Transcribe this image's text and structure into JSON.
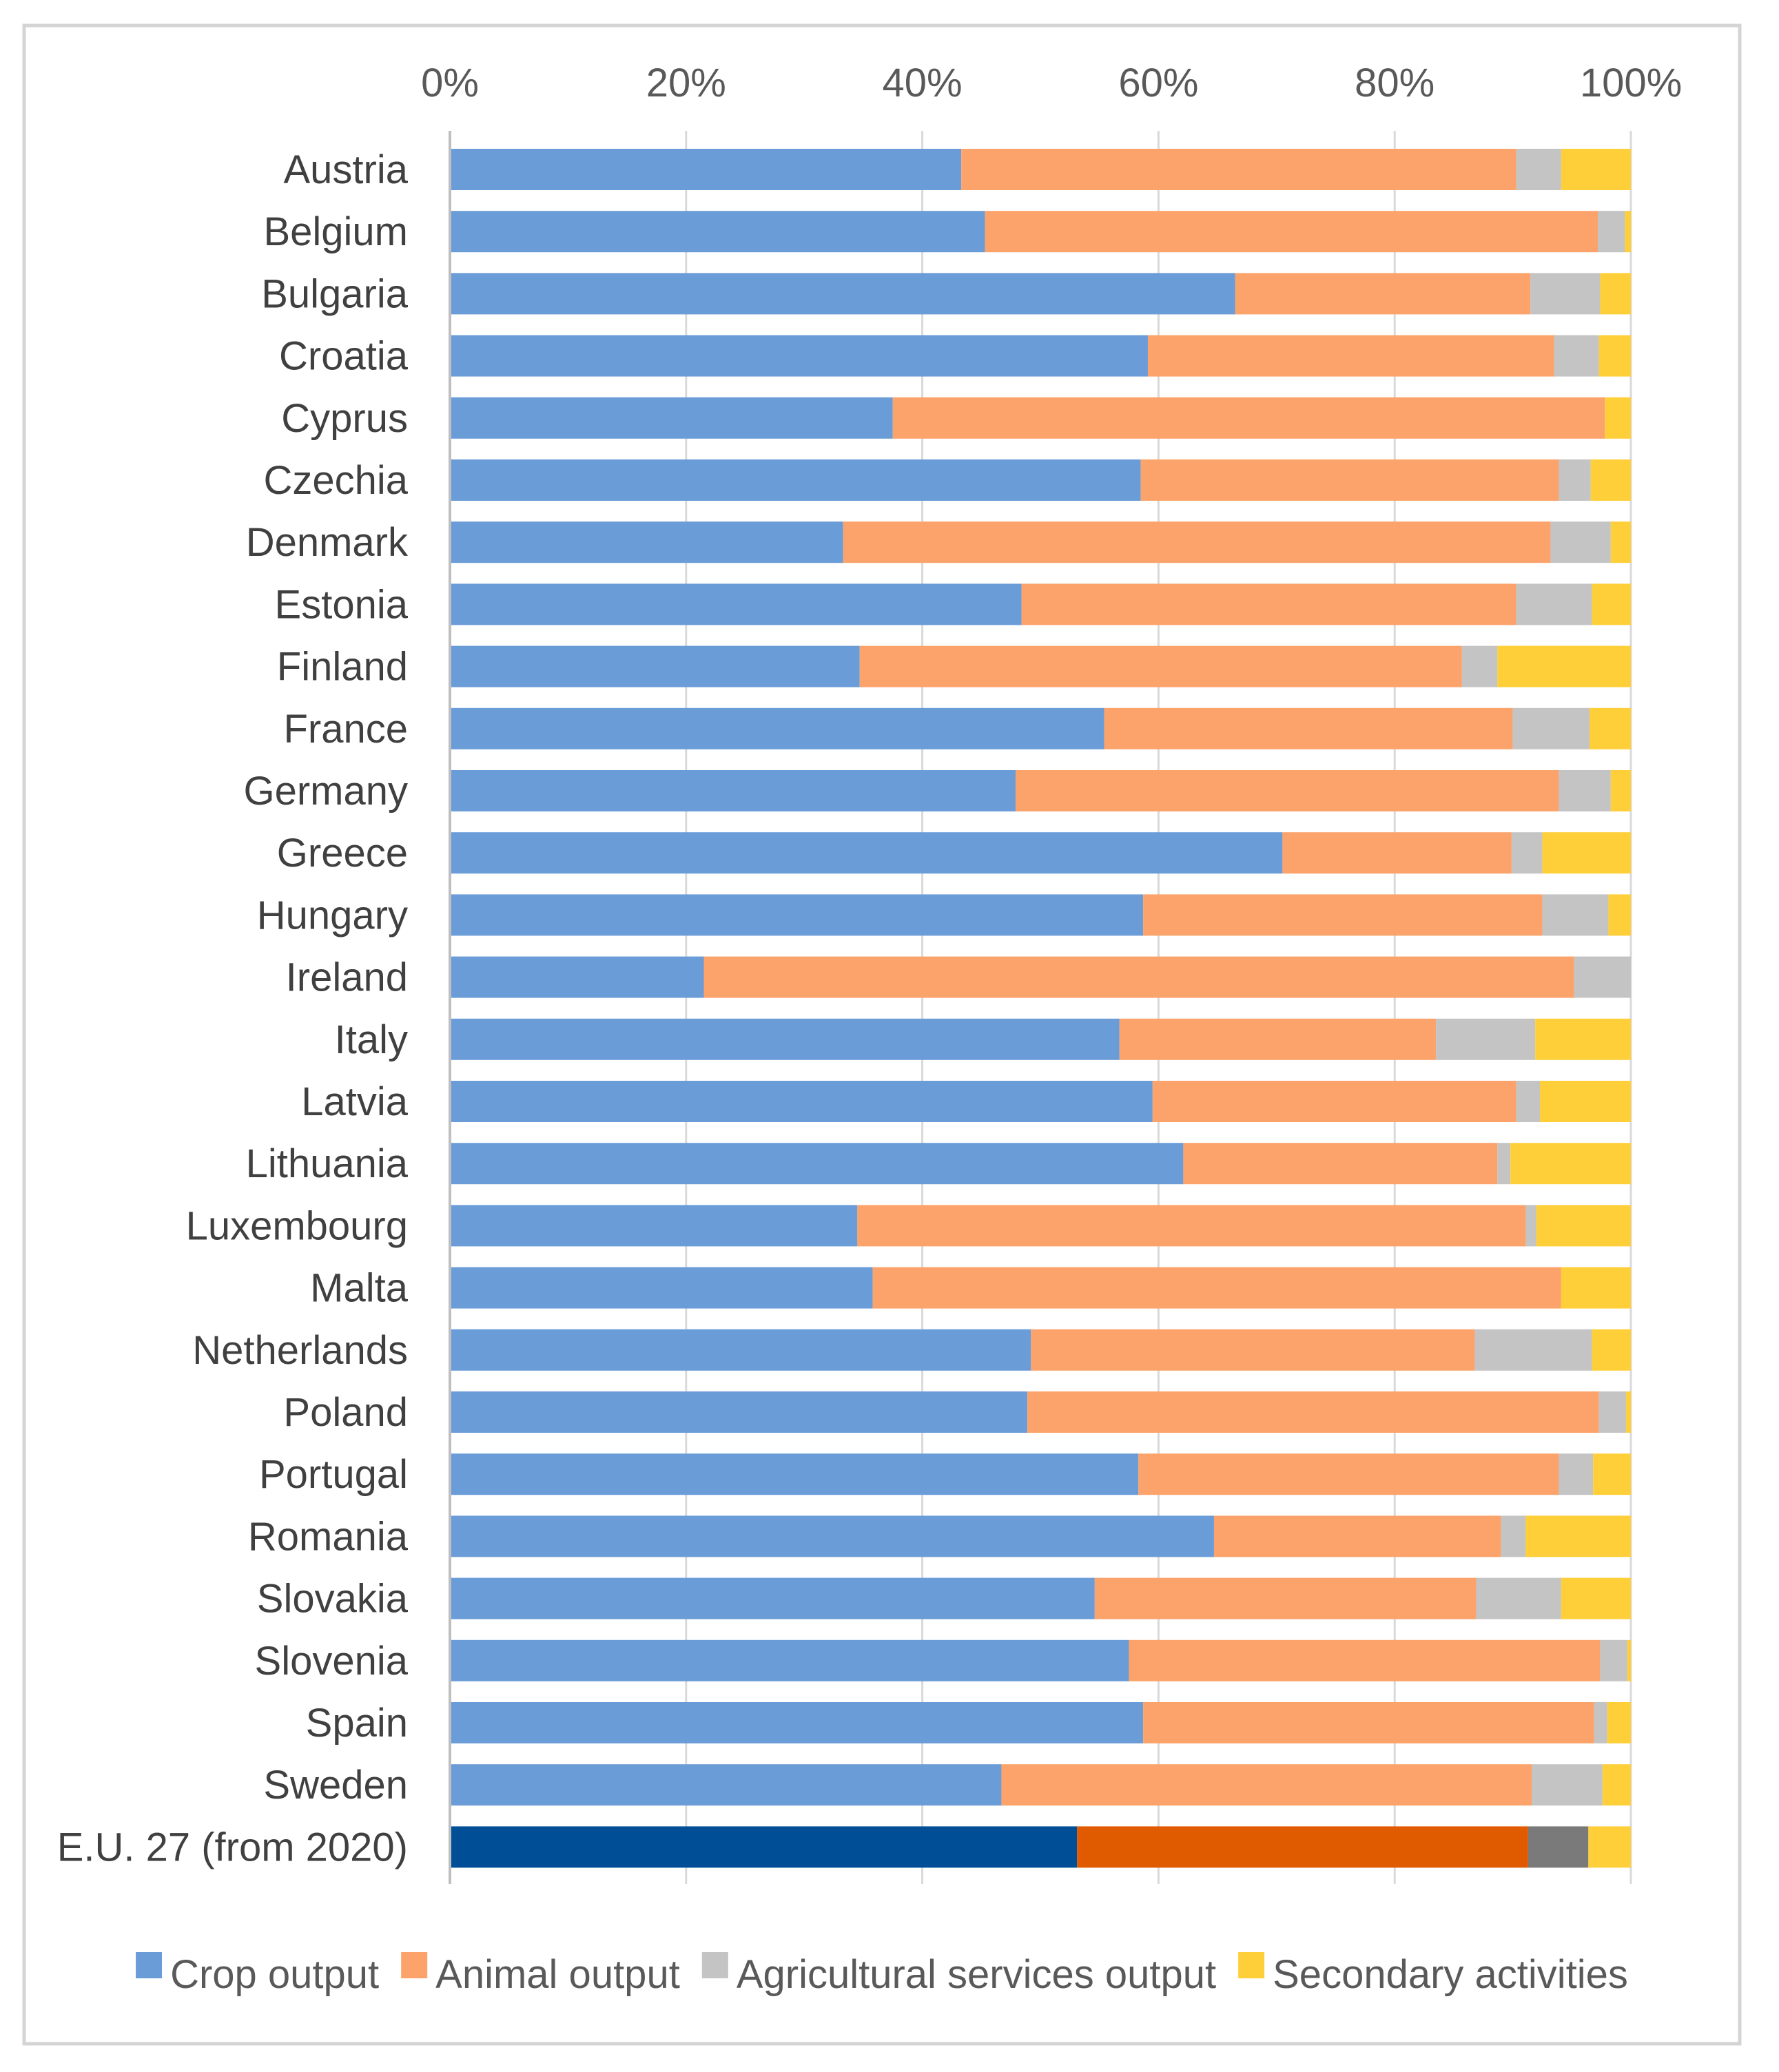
{
  "chart_data": {
    "type": "bar",
    "orientation": "horizontal",
    "stacking": "percent",
    "title": "",
    "xlabel": "",
    "ylabel": "",
    "xlim": [
      0,
      100
    ],
    "x_ticks": [
      "0%",
      "20%",
      "40%",
      "60%",
      "80%",
      "100%"
    ],
    "x_axis_position": "top",
    "grid": true,
    "legend_position": "bottom",
    "categories": [
      "Austria",
      "Belgium",
      "Bulgaria",
      "Croatia",
      "Cyprus",
      "Czechia",
      "Denmark",
      "Estonia",
      "Finland",
      "France",
      "Germany",
      "Greece",
      "Hungary",
      "Ireland",
      "Italy",
      "Latvia",
      "Lithuania",
      "Luxembourg",
      "Malta",
      "Netherlands",
      "Poland",
      "Portugal",
      "Romania",
      "Slovakia",
      "Slovenia",
      "Spain",
      "Sweden",
      "E.U. 27 (from 2020)"
    ],
    "series": [
      {
        "name": "Crop output",
        "color": "#6a9cd8",
        "highlight_color": "#004e96",
        "values": [
          43.3,
          45.3,
          66.5,
          59.1,
          37.5,
          58.5,
          33.3,
          48.4,
          34.7,
          55.4,
          47.9,
          70.5,
          58.7,
          21.5,
          56.7,
          59.5,
          62.1,
          34.5,
          35.8,
          49.2,
          48.9,
          58.3,
          64.7,
          54.6,
          57.5,
          58.7,
          46.7,
          53.1
        ]
      },
      {
        "name": "Animal output",
        "color": "#fca36b",
        "highlight_color": "#e05a00",
        "values": [
          47.0,
          51.9,
          25.0,
          34.4,
          60.3,
          35.4,
          59.9,
          41.9,
          51.0,
          34.6,
          46.0,
          19.4,
          33.8,
          73.7,
          26.8,
          30.8,
          26.6,
          56.6,
          58.3,
          37.6,
          48.4,
          35.6,
          24.3,
          32.3,
          39.9,
          38.2,
          44.9,
          38.2
        ]
      },
      {
        "name": "Agricultural services output",
        "color": "#c4c4c4",
        "highlight_color": "#7a7a7a",
        "values": [
          3.8,
          2.3,
          5.9,
          3.8,
          0,
          2.7,
          5.1,
          6.4,
          3.0,
          6.5,
          4.4,
          2.6,
          5.6,
          4.8,
          8.4,
          2.0,
          1.1,
          0.9,
          0,
          9.9,
          2.3,
          2.9,
          2.1,
          7.2,
          2.3,
          1.1,
          6.0,
          5.1
        ]
      },
      {
        "name": "Secondary activities",
        "color": "#ffcf3a",
        "highlight_color": "#ffcf3a",
        "values": [
          5.9,
          0.5,
          2.6,
          2.7,
          2.2,
          3.4,
          1.7,
          3.3,
          11.3,
          3.5,
          1.7,
          7.5,
          1.9,
          0,
          8.1,
          7.7,
          10.2,
          8.0,
          5.9,
          3.3,
          0.4,
          3.2,
          8.9,
          5.9,
          0.3,
          2.0,
          2.4,
          3.6
        ]
      }
    ]
  }
}
